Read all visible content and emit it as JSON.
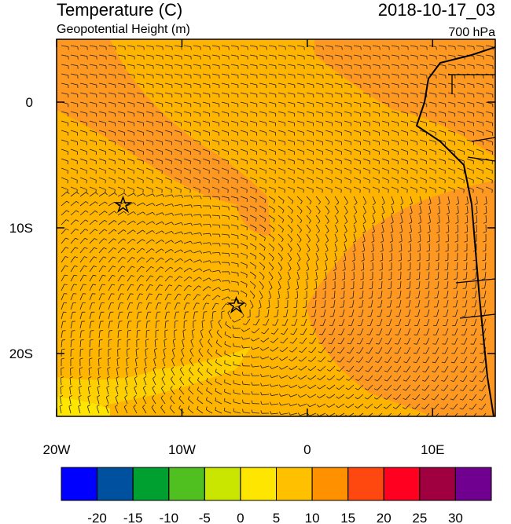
{
  "header": {
    "title": "Temperature (C)",
    "subtitle": "Geopotential Height (m)",
    "time": "2018-10-17_03",
    "level": "700 hPa"
  },
  "map": {
    "lonlim": [
      -20,
      15
    ],
    "latlim": [
      -25,
      5
    ],
    "lon_ticks": [
      {
        "value": -20,
        "label": "20W"
      },
      {
        "value": -10,
        "label": "10W"
      },
      0,
      {
        "value": 10,
        "label": "10E"
      }
    ],
    "lat_ticks": [
      0,
      {
        "value": -10,
        "label": "10S"
      },
      {
        "value": -20,
        "label": "20S"
      }
    ]
  },
  "colorbar": {
    "levels": [
      -20,
      -15,
      -10,
      -5,
      0,
      5,
      10,
      15,
      20,
      25,
      30
    ],
    "colors": [
      "#0000ff",
      "#0050a0",
      "#00a030",
      "#50c020",
      "#c8e600",
      "#ffe600",
      "#ffc000",
      "#ff9000",
      "#ff4810",
      "#ff0020",
      "#a00040",
      "#700090"
    ]
  }
}
